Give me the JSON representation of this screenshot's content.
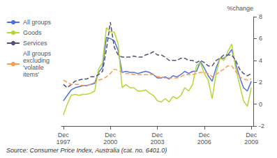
{
  "chart_data": {
    "type": "line",
    "ylabel": "%change",
    "annotations": [
      "Source: Consumer Price Index, Australia (cat. no. 6401.0)"
    ],
    "categories": [
      "Dec\n1997",
      null,
      null,
      null,
      null,
      null,
      null,
      null,
      null,
      null,
      null,
      null,
      "Dec\n2000",
      null,
      null,
      null,
      null,
      null,
      null,
      null,
      null,
      null,
      null,
      null,
      "Dec\n2003",
      null,
      null,
      null,
      null,
      null,
      null,
      null,
      null,
      null,
      null,
      null,
      "Dec\n2006",
      null,
      null,
      null,
      null,
      null,
      null,
      null,
      null,
      null,
      null,
      null,
      "Dec\n2009"
    ],
    "ylim": [
      -2,
      8
    ],
    "yticks": [
      -2,
      0,
      2,
      4,
      6,
      8
    ],
    "grid": false,
    "legend": "upper left",
    "series": [
      {
        "name": "All groups",
        "line_style": "solid",
        "values": [
          0.3,
          0.8,
          1.3,
          1.5,
          1.6,
          1.7,
          1.7,
          1.8,
          1.9,
          2.9,
          3.4,
          6.1,
          6.0,
          5.8,
          4.9,
          2.9,
          3.0,
          2.9,
          2.9,
          2.8,
          2.9,
          3.0,
          2.9,
          2.7,
          2.4,
          2.4,
          2.5,
          2.3,
          2.6,
          2.5,
          2.7,
          3.0,
          2.8,
          3.0,
          3.0,
          3.9,
          3.3,
          2.6,
          2.1,
          3.3,
          4.2,
          4.2,
          4.5,
          5.0,
          3.7,
          2.5,
          1.5,
          1.2,
          2.1
        ]
      },
      {
        "name": "Goods",
        "line_style": "solid",
        "values": [
          -1.0,
          0.0,
          0.8,
          0.9,
          0.8,
          0.9,
          0.9,
          1.0,
          1.2,
          3.2,
          3.8,
          7.0,
          6.6,
          6.6,
          5.5,
          1.5,
          1.8,
          1.5,
          1.5,
          1.2,
          1.2,
          1.3,
          1.0,
          0.8,
          0.3,
          0.2,
          0.5,
          0.2,
          0.7,
          0.5,
          0.8,
          1.5,
          1.2,
          1.8,
          3.5,
          3.8,
          2.8,
          2.2,
          0.5,
          2.8,
          4.2,
          4.0,
          4.8,
          5.5,
          3.3,
          1.8,
          0.3,
          -0.2,
          1.5
        ]
      },
      {
        "name": "Services",
        "line_style": "dashed",
        "values": [
          1.8,
          1.5,
          1.8,
          2.1,
          2.2,
          2.3,
          2.3,
          2.5,
          2.5,
          2.7,
          3.0,
          5.0,
          7.5,
          5.2,
          4.5,
          4.3,
          4.3,
          4.3,
          4.4,
          4.3,
          4.3,
          4.5,
          4.6,
          4.8,
          4.5,
          4.5,
          4.3,
          4.0,
          4.0,
          4.0,
          4.2,
          4.2,
          4.0,
          4.0,
          3.8,
          4.0,
          3.8,
          3.5,
          3.5,
          4.0,
          4.2,
          4.5,
          4.5,
          4.5,
          4.0,
          3.2,
          2.8,
          2.6,
          2.8
        ]
      },
      {
        "name": "All groups\nexcluding\n'volatile\nitems'",
        "line_style": "dashed",
        "values": [
          2.2,
          2.0,
          1.8,
          1.8,
          1.8,
          1.7,
          1.7,
          1.8,
          2.0,
          2.2,
          2.3,
          2.5,
          2.8,
          3.2,
          3.1,
          2.9,
          2.8,
          2.8,
          2.7,
          2.7,
          2.7,
          2.7,
          2.7,
          2.7,
          2.5,
          2.5,
          2.4,
          2.4,
          2.4,
          2.4,
          2.5,
          2.7,
          2.7,
          2.7,
          2.8,
          2.9,
          2.9,
          2.8,
          2.5,
          2.7,
          3.0,
          3.2,
          3.5,
          3.5,
          3.0,
          2.5,
          2.3,
          2.2,
          2.3
        ]
      }
    ]
  }
}
